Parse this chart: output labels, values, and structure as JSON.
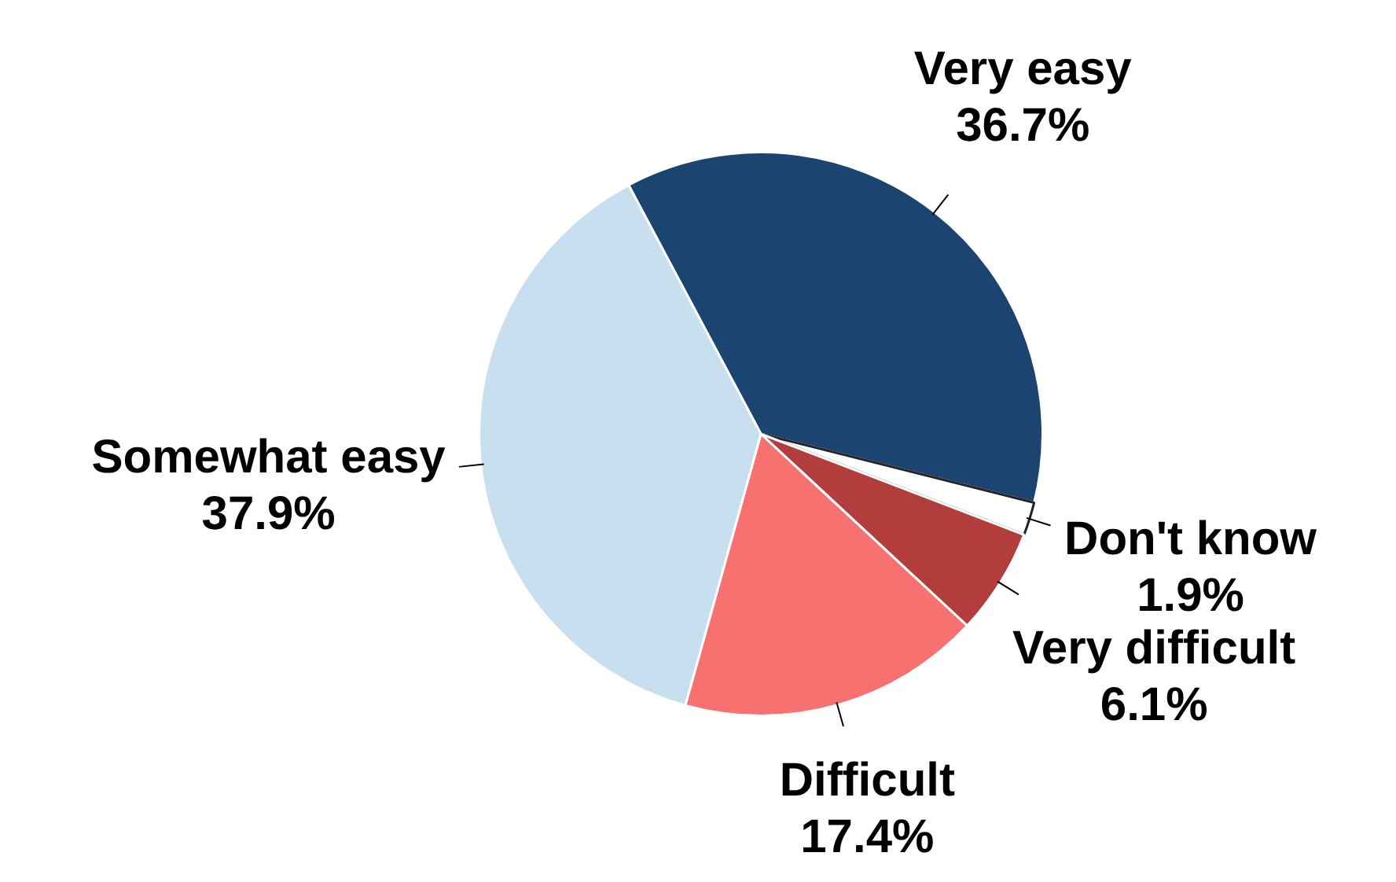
{
  "chart_data": {
    "type": "pie",
    "categories": [
      "Very easy",
      "Don't know",
      "Very difficult",
      "Difficult",
      "Somewhat easy"
    ],
    "values": [
      36.7,
      1.9,
      6.1,
      17.4,
      37.9
    ],
    "colors": [
      "#1b4470",
      "#ffffff",
      "#b33c3c",
      "#f87171",
      "#c7dfee"
    ],
    "value_labels": [
      "36.7%",
      "1.9%",
      "6.1%",
      "17.4%",
      "37.9%"
    ],
    "legend": false
  }
}
